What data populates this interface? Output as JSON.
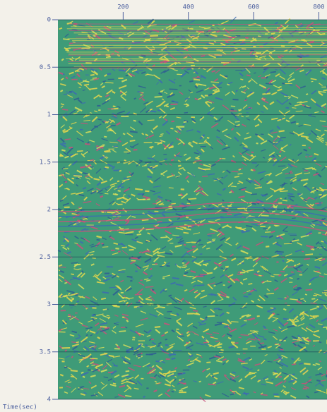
{
  "chart_data": {
    "type": "image",
    "xlabel": "Time(sec)",
    "xlim": [
      0,
      825
    ],
    "xticks": [
      200,
      400,
      600,
      800
    ],
    "ylim": [
      0,
      4
    ],
    "yticks": [
      0,
      0.5,
      1,
      1.5,
      2,
      2.5,
      3,
      3.5,
      4
    ],
    "grid": true
  }
}
